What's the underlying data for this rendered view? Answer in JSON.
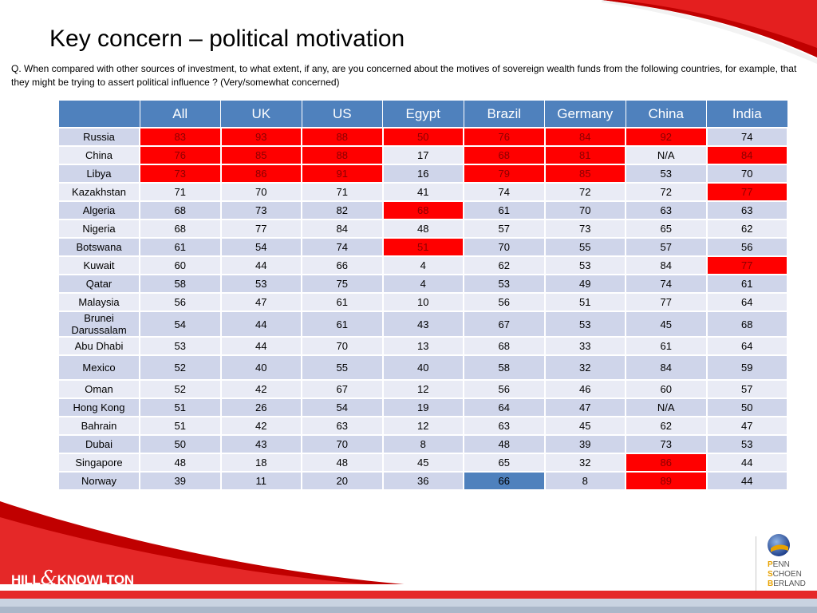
{
  "slide": {
    "title": "Key concern – political motivation",
    "question": "Q. When compared with other sources of investment, to what extent, if any, are you  concerned about the motives of  sovereign wealth funds from the following countries, for example, that they might be trying to assert political influence ? (Very/somewhat concerned)"
  },
  "logos": {
    "left_prefix": "HILL",
    "left_amp": "&",
    "left_suffix": "KNOWLTON",
    "right_lines": [
      {
        "initial": "P",
        "rest": "ENN"
      },
      {
        "initial": "S",
        "rest": "CHOEN"
      },
      {
        "initial": "B",
        "rest": "ERLAND"
      }
    ]
  },
  "colors": {
    "header": "#4f81bd",
    "highlight_red": "#ff0000",
    "highlight_blue": "#4f81bd",
    "row_odd": "#cfd5ea",
    "row_even": "#e9ebf5"
  },
  "chart_data": {
    "type": "table",
    "title": "Key concern – political motivation",
    "columns": [
      "All",
      "UK",
      "US",
      "Egypt",
      "Brazil",
      "Germany",
      "China",
      "India"
    ],
    "rows": [
      {
        "label": "Russia",
        "values": [
          "83",
          "93",
          "88",
          "50",
          "76",
          "84",
          "92",
          "74"
        ]
      },
      {
        "label": "China",
        "values": [
          "76",
          "85",
          "88",
          "17",
          "68",
          "81",
          "N/A",
          "84"
        ]
      },
      {
        "label": "Libya",
        "values": [
          "73",
          "86",
          "91",
          "16",
          "79",
          "85",
          "53",
          "70"
        ]
      },
      {
        "label": "Kazakhstan",
        "values": [
          "71",
          "70",
          "71",
          "41",
          "74",
          "72",
          "72",
          "77"
        ]
      },
      {
        "label": "Algeria",
        "values": [
          "68",
          "73",
          "82",
          "68",
          "61",
          "70",
          "63",
          "63"
        ]
      },
      {
        "label": "Nigeria",
        "values": [
          "68",
          "77",
          "84",
          "48",
          "57",
          "73",
          "65",
          "62"
        ]
      },
      {
        "label": "Botswana",
        "values": [
          "61",
          "54",
          "74",
          "51",
          "70",
          "55",
          "57",
          "56"
        ]
      },
      {
        "label": "Kuwait",
        "values": [
          "60",
          "44",
          "66",
          "4",
          "62",
          "53",
          "84",
          "77"
        ]
      },
      {
        "label": "Qatar",
        "values": [
          "58",
          "53",
          "75",
          "4",
          "53",
          "49",
          "74",
          "61"
        ]
      },
      {
        "label": "Malaysia",
        "values": [
          "56",
          "47",
          "61",
          "10",
          "56",
          "51",
          "77",
          "64"
        ]
      },
      {
        "label": "Brunei Darussalam",
        "values": [
          "54",
          "44",
          "61",
          "43",
          "67",
          "53",
          "45",
          "68"
        ]
      },
      {
        "label": "Abu Dhabi",
        "values": [
          "53",
          "44",
          "70",
          "13",
          "68",
          "33",
          "61",
          "64"
        ]
      },
      {
        "label": "Mexico",
        "values": [
          "52",
          "40",
          "55",
          "40",
          "58",
          "32",
          "84",
          "59"
        ]
      },
      {
        "label": "Oman",
        "values": [
          "52",
          "42",
          "67",
          "12",
          "56",
          "46",
          "60",
          "57"
        ]
      },
      {
        "label": "Hong Kong",
        "values": [
          "51",
          "26",
          "54",
          "19",
          "64",
          "47",
          "N/A",
          "50"
        ]
      },
      {
        "label": "Bahrain",
        "values": [
          "51",
          "42",
          "63",
          "12",
          "63",
          "45",
          "62",
          "47"
        ]
      },
      {
        "label": "Dubai",
        "values": [
          "50",
          "43",
          "70",
          "8",
          "48",
          "39",
          "73",
          "53"
        ]
      },
      {
        "label": "Singapore",
        "values": [
          "48",
          "18",
          "48",
          "45",
          "65",
          "32",
          "86",
          "44"
        ]
      },
      {
        "label": "Norway",
        "values": [
          "39",
          "11",
          "20",
          "36",
          "66",
          "8",
          "89",
          "44"
        ]
      }
    ],
    "highlight_red": [
      [
        0,
        0
      ],
      [
        0,
        1
      ],
      [
        0,
        2
      ],
      [
        0,
        3
      ],
      [
        0,
        4
      ],
      [
        0,
        5
      ],
      [
        0,
        6
      ],
      [
        1,
        0
      ],
      [
        1,
        1
      ],
      [
        1,
        2
      ],
      [
        1,
        4
      ],
      [
        1,
        5
      ],
      [
        1,
        7
      ],
      [
        2,
        0
      ],
      [
        2,
        1
      ],
      [
        2,
        2
      ],
      [
        2,
        4
      ],
      [
        2,
        5
      ],
      [
        3,
        7
      ],
      [
        4,
        3
      ],
      [
        6,
        3
      ],
      [
        7,
        7
      ],
      [
        17,
        6
      ],
      [
        18,
        6
      ]
    ],
    "highlight_blue": [
      [
        18,
        4
      ]
    ]
  }
}
